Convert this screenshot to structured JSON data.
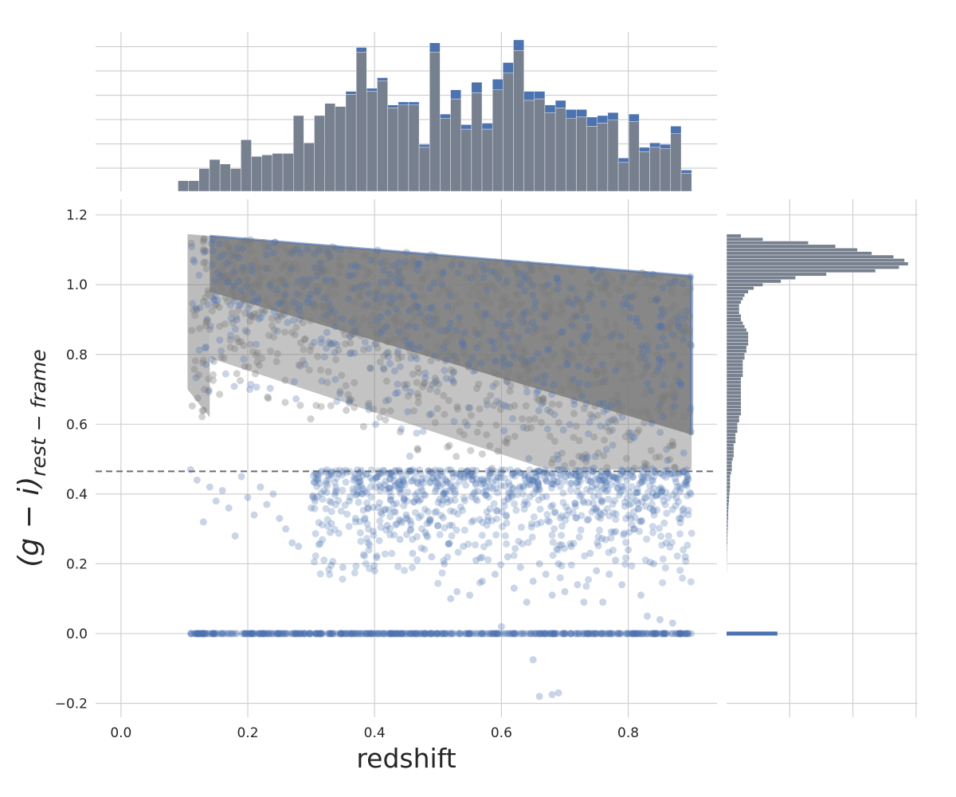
{
  "chart_data": {
    "type": "scatter",
    "title": "",
    "xlabel": "redshift",
    "ylabel_parts": {
      "open": "(g − i)",
      "sub": "rest − frame"
    },
    "xlim": [
      -0.04,
      0.94
    ],
    "ylim": [
      -0.24,
      1.245
    ],
    "x_ticks": [
      0.0,
      0.2,
      0.4,
      0.6,
      0.8
    ],
    "x_tick_labels": [
      "0.0",
      "0.2",
      "0.4",
      "0.6",
      "0.8"
    ],
    "y_ticks": [
      -0.2,
      0.0,
      0.2,
      0.4,
      0.6,
      0.8,
      1.0,
      1.2
    ],
    "y_tick_labels": [
      "−0.2",
      "0.0",
      "0.2",
      "0.4",
      "0.6",
      "0.8",
      "1.0",
      "1.2"
    ],
    "threshold": {
      "y": 0.465,
      "style": "dashed",
      "color": "#6e6e6e"
    },
    "colors": {
      "blue": "#4c72b0",
      "gray": "#7a7a7a",
      "hist_gray": "#77808f",
      "grid": "#d0d0d0"
    },
    "series_styles": [
      {
        "color": "#4c72b0",
        "alpha": 0.25
      },
      {
        "color": "#7a7a7a",
        "alpha": 0.35
      }
    ],
    "upper_envelope": [
      [
        0.11,
        1.145
      ],
      [
        0.14,
        1.14
      ],
      [
        0.9,
        1.025
      ]
    ],
    "red_sequence_lower": [
      [
        0.14,
        0.98
      ],
      [
        0.9,
        0.57
      ]
    ],
    "outlier_points": [
      [
        0.11,
        0.47
      ],
      [
        0.12,
        0.44
      ],
      [
        0.13,
        0.32
      ],
      [
        0.14,
        0.42
      ],
      [
        0.15,
        0.38
      ],
      [
        0.16,
        0.41
      ],
      [
        0.17,
        0.36
      ],
      [
        0.18,
        0.28
      ],
      [
        0.19,
        0.45
      ],
      [
        0.2,
        0.39
      ],
      [
        0.21,
        0.34
      ],
      [
        0.22,
        0.42
      ],
      [
        0.23,
        0.37
      ],
      [
        0.24,
        0.4
      ],
      [
        0.25,
        0.33
      ],
      [
        0.26,
        0.3
      ],
      [
        0.27,
        0.26
      ],
      [
        0.28,
        0.25
      ],
      [
        0.3,
        0.36
      ],
      [
        0.31,
        0.44
      ],
      [
        0.32,
        0.41
      ],
      [
        0.33,
        0.29
      ],
      [
        0.35,
        0.19
      ],
      [
        0.36,
        0.38
      ],
      [
        0.37,
        0.33
      ],
      [
        0.39,
        0.36
      ],
      [
        0.4,
        0.18
      ],
      [
        0.41,
        0.42
      ],
      [
        0.42,
        0.31
      ],
      [
        0.43,
        0.37
      ],
      [
        0.44,
        0.27
      ],
      [
        0.45,
        0.34
      ],
      [
        0.46,
        0.23
      ],
      [
        0.47,
        0.38
      ],
      [
        0.48,
        0.29
      ],
      [
        0.49,
        0.22
      ],
      [
        0.5,
        0.31
      ],
      [
        0.51,
        0.2
      ],
      [
        0.52,
        0.1
      ],
      [
        0.53,
        0.12
      ],
      [
        0.54,
        0.25
      ],
      [
        0.55,
        0.11
      ],
      [
        0.56,
        0.21
      ],
      [
        0.57,
        0.15
      ],
      [
        0.58,
        0.26
      ],
      [
        0.59,
        0.17
      ],
      [
        0.6,
        0.02
      ],
      [
        0.61,
        0.22
      ],
      [
        0.62,
        0.13
      ],
      [
        0.63,
        0.19
      ],
      [
        0.64,
        0.09
      ],
      [
        0.65,
        0.15
      ],
      [
        0.66,
        0.2
      ],
      [
        0.67,
        0.17
      ],
      [
        0.68,
        0.11
      ],
      [
        0.69,
        0.2
      ],
      [
        0.7,
        0.12
      ],
      [
        0.71,
        0.25
      ],
      [
        0.72,
        0.14
      ],
      [
        0.73,
        0.09
      ],
      [
        0.74,
        0.23
      ],
      [
        0.75,
        0.18
      ],
      [
        0.76,
        0.09
      ],
      [
        0.77,
        0.17
      ],
      [
        0.78,
        0.21
      ],
      [
        0.79,
        0.14
      ],
      [
        0.8,
        0.24
      ],
      [
        0.81,
        0.3
      ],
      [
        0.82,
        0.11
      ],
      [
        0.83,
        0.05
      ],
      [
        0.84,
        0.2
      ],
      [
        0.85,
        0.04
      ],
      [
        0.86,
        0.26
      ],
      [
        0.87,
        0.03
      ],
      [
        0.88,
        0.33
      ],
      [
        0.89,
        0.22
      ],
      [
        0.65,
        -0.075
      ],
      [
        0.66,
        -0.18
      ],
      [
        0.68,
        -0.175
      ],
      [
        0.69,
        -0.17
      ]
    ],
    "top_histogram": {
      "bin_edges": [
        0.09,
        0.9
      ],
      "counts_gray": [
        0.07,
        0.07,
        0.15,
        0.21,
        0.18,
        0.15,
        0.34,
        0.23,
        0.24,
        0.25,
        0.25,
        0.5,
        0.32,
        0.5,
        0.58,
        0.56,
        0.64,
        0.92,
        0.66,
        0.73,
        0.55,
        0.57,
        0.57,
        0.29,
        0.92,
        0.48,
        0.61,
        0.41,
        0.65,
        0.41,
        0.67,
        0.78,
        0.93,
        0.6,
        0.61,
        0.52,
        0.55,
        0.48,
        0.49,
        0.43,
        0.45,
        0.47,
        0.19,
        0.46,
        0.26,
        0.29,
        0.28,
        0.38,
        0.12
      ],
      "counts_blue_extra": [
        0,
        0,
        0,
        0,
        0,
        0,
        0,
        0,
        0,
        0,
        0,
        0,
        0,
        0,
        0,
        0,
        0.02,
        0.03,
        0.02,
        0.02,
        0.02,
        0.02,
        0.02,
        0.02,
        0.06,
        0.03,
        0.06,
        0.03,
        0.07,
        0.04,
        0.07,
        0.07,
        0.07,
        0.06,
        0.05,
        0.05,
        0.05,
        0.06,
        0.05,
        0.06,
        0.05,
        0.05,
        0.03,
        0.05,
        0.03,
        0.03,
        0.03,
        0.05,
        0.02
      ]
    },
    "right_histogram": {
      "zero_bin": {
        "y": 0.0,
        "length": 0.28
      },
      "profile": [
        [
          1.14,
          0.08
        ],
        [
          1.13,
          0.2
        ],
        [
          1.12,
          0.45
        ],
        [
          1.11,
          0.6
        ],
        [
          1.1,
          0.72
        ],
        [
          1.09,
          0.8
        ],
        [
          1.08,
          0.92
        ],
        [
          1.07,
          0.98
        ],
        [
          1.06,
          1.0
        ],
        [
          1.05,
          0.95
        ],
        [
          1.04,
          0.82
        ],
        [
          1.03,
          0.55
        ],
        [
          1.02,
          0.38
        ],
        [
          1.01,
          0.3
        ],
        [
          1.0,
          0.2
        ],
        [
          0.99,
          0.15
        ],
        [
          0.98,
          0.12
        ],
        [
          0.97,
          0.1
        ],
        [
          0.96,
          0.09
        ],
        [
          0.95,
          0.08
        ],
        [
          0.94,
          0.07
        ],
        [
          0.93,
          0.07
        ],
        [
          0.92,
          0.07
        ],
        [
          0.91,
          0.08
        ],
        [
          0.9,
          0.08
        ],
        [
          0.89,
          0.09
        ],
        [
          0.88,
          0.1
        ],
        [
          0.87,
          0.11
        ],
        [
          0.86,
          0.12
        ],
        [
          0.85,
          0.12
        ],
        [
          0.84,
          0.12
        ],
        [
          0.83,
          0.12
        ],
        [
          0.82,
          0.11
        ],
        [
          0.81,
          0.11
        ],
        [
          0.8,
          0.1
        ],
        [
          0.79,
          0.1
        ],
        [
          0.78,
          0.09
        ],
        [
          0.77,
          0.09
        ],
        [
          0.76,
          0.09
        ],
        [
          0.75,
          0.09
        ],
        [
          0.74,
          0.09
        ],
        [
          0.73,
          0.08
        ],
        [
          0.72,
          0.08
        ],
        [
          0.71,
          0.08
        ],
        [
          0.7,
          0.08
        ],
        [
          0.69,
          0.08
        ],
        [
          0.68,
          0.08
        ],
        [
          0.67,
          0.08
        ],
        [
          0.66,
          0.08
        ],
        [
          0.65,
          0.08
        ],
        [
          0.64,
          0.08
        ],
        [
          0.63,
          0.08
        ],
        [
          0.62,
          0.07
        ],
        [
          0.61,
          0.07
        ],
        [
          0.6,
          0.06
        ],
        [
          0.59,
          0.06
        ],
        [
          0.58,
          0.06
        ],
        [
          0.57,
          0.05
        ],
        [
          0.56,
          0.05
        ],
        [
          0.55,
          0.05
        ],
        [
          0.54,
          0.04
        ],
        [
          0.53,
          0.04
        ],
        [
          0.52,
          0.04
        ],
        [
          0.51,
          0.04
        ],
        [
          0.5,
          0.035
        ],
        [
          0.49,
          0.03
        ],
        [
          0.48,
          0.03
        ],
        [
          0.47,
          0.03
        ],
        [
          0.46,
          0.025
        ],
        [
          0.45,
          0.02
        ],
        [
          0.44,
          0.02
        ],
        [
          0.43,
          0.02
        ],
        [
          0.42,
          0.02
        ],
        [
          0.41,
          0.018
        ],
        [
          0.4,
          0.016
        ],
        [
          0.39,
          0.015
        ],
        [
          0.38,
          0.014
        ],
        [
          0.37,
          0.012
        ],
        [
          0.36,
          0.011
        ],
        [
          0.35,
          0.01
        ],
        [
          0.34,
          0.01
        ],
        [
          0.33,
          0.009
        ],
        [
          0.32,
          0.008
        ],
        [
          0.31,
          0.008
        ],
        [
          0.3,
          0.007
        ],
        [
          0.29,
          0.006
        ],
        [
          0.28,
          0.006
        ],
        [
          0.27,
          0.005
        ],
        [
          0.26,
          0.005
        ],
        [
          0.25,
          0.004
        ],
        [
          0.24,
          0.004
        ],
        [
          0.23,
          0.003
        ],
        [
          0.22,
          0.003
        ],
        [
          0.21,
          0.003
        ],
        [
          0.2,
          0.002
        ],
        [
          0.19,
          0.002
        ],
        [
          0.18,
          0.002
        ]
      ]
    }
  }
}
